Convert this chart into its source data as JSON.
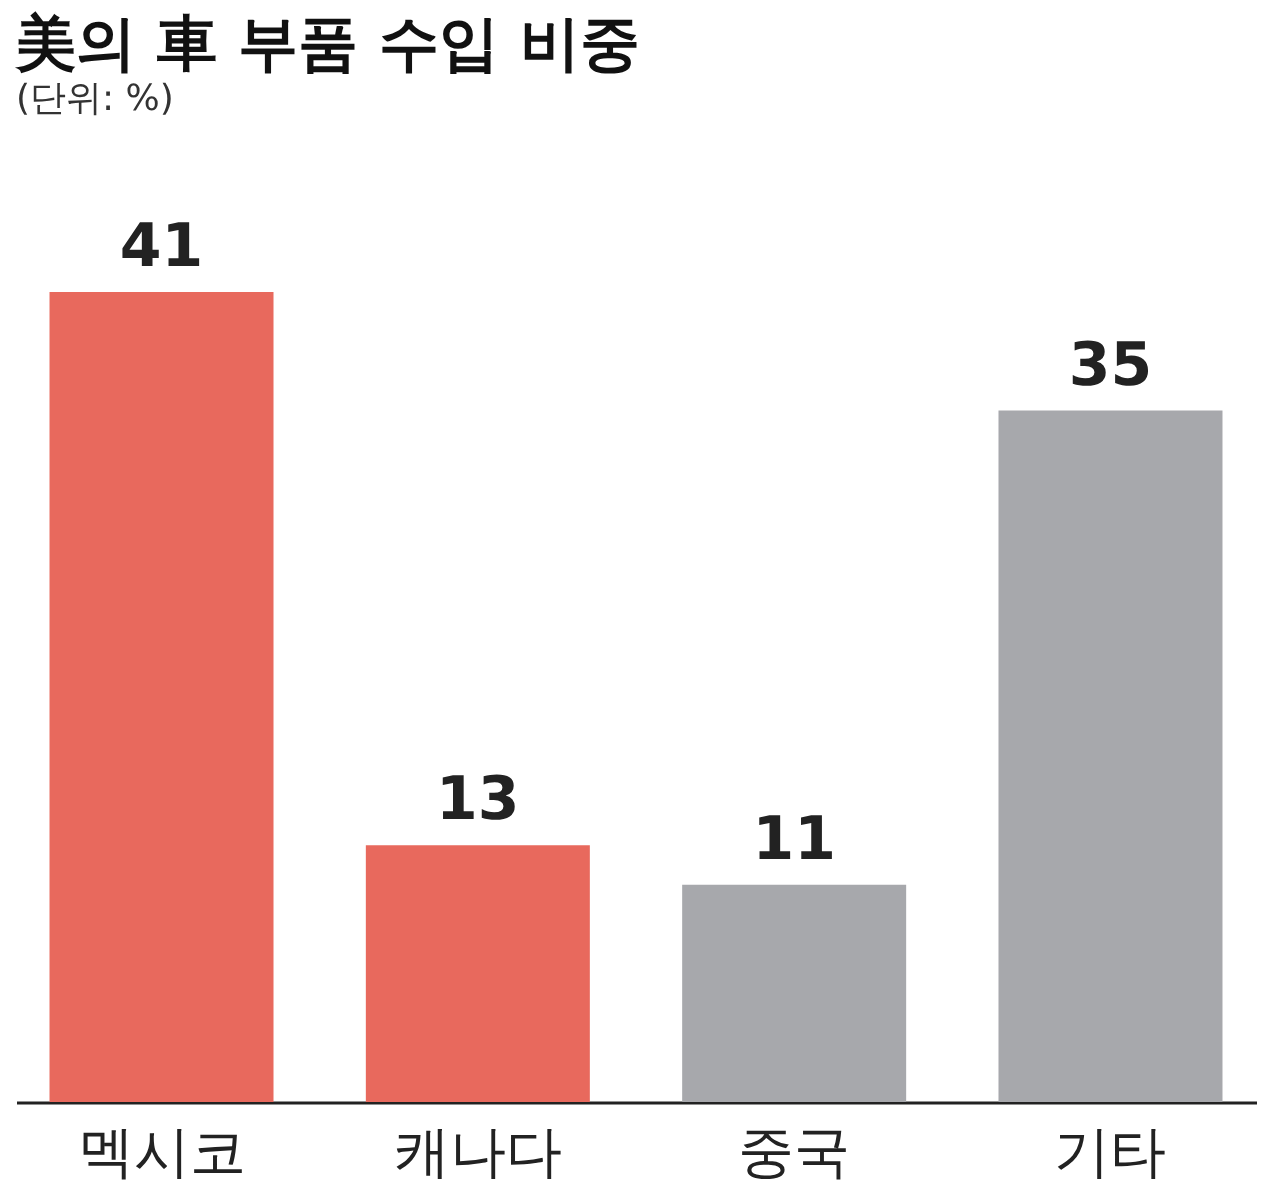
{
  "chart_data": {
    "type": "bar",
    "title": "美의 車 부품 수입 비중",
    "subtitle": "(단위: %)",
    "categories": [
      "멕시코",
      "캐나다",
      "중국",
      "기타"
    ],
    "values": [
      41,
      13,
      11,
      35
    ],
    "colors": [
      "#e8695d",
      "#e8695d",
      "#a7a8ac",
      "#a7a8ac"
    ],
    "data_labels": true
  }
}
